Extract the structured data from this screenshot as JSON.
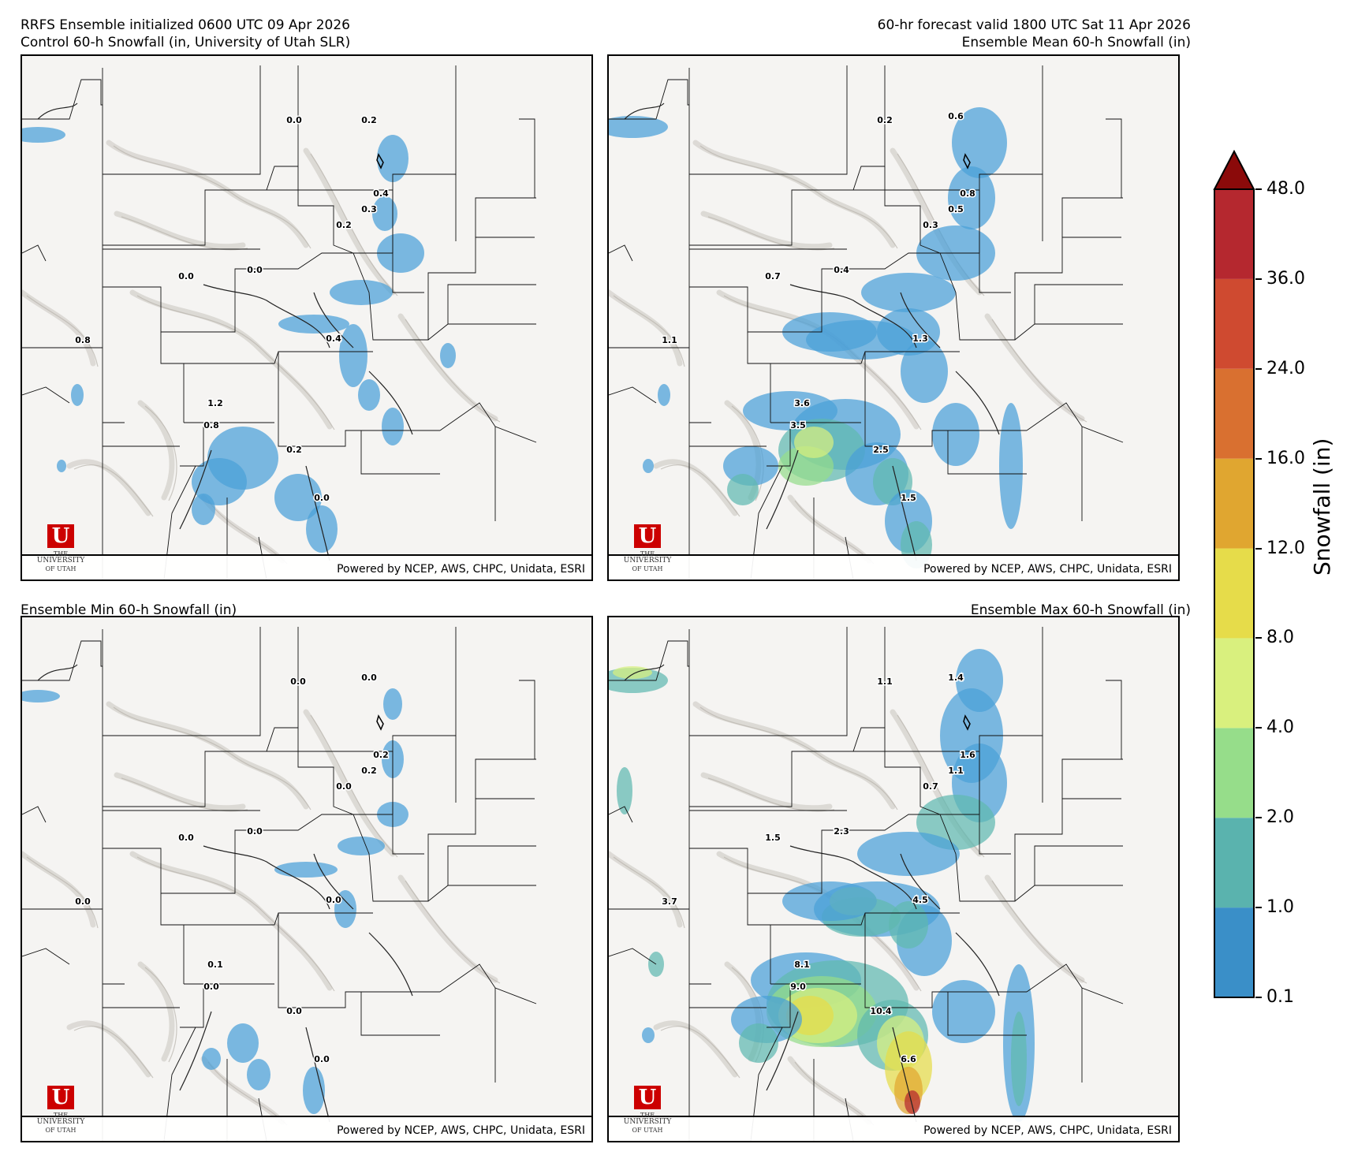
{
  "titles": {
    "top_left_line1": "RRFS Ensemble initialized 0600 UTC 09 Apr 2026",
    "top_left_line2": "Control 60-h Snowfall (in, University of Utah SLR)",
    "top_right_line1": "60-hr forecast valid 1800 UTC Sat 11 Apr 2026",
    "top_right_line2": "Ensemble Mean 60-h Snowfall (in)",
    "bottom_left": "Ensemble Min 60-h Snowfall (in)",
    "bottom_right": "Ensemble Max 60-h Snowfall (in)"
  },
  "credit": "Powered by NCEP, AWS, CHPC, Unidata, ESRI",
  "logo": {
    "line1": "THE",
    "line2": "UNIVERSITY",
    "line3": "OF UTAH",
    "letter": "U"
  },
  "colors": {
    "snow_light": "#4a9fd8",
    "snow_teal": "#5fb8b0",
    "snow_green": "#96dd8a",
    "snow_yellowgreen": "#d8f080",
    "snow_yellow": "#e6dc4a",
    "snow_orange": "#e0a630",
    "snow_red": "#b5282f",
    "logo_red": "#cc0000"
  },
  "colorbar": {
    "label": "Snowfall (in)",
    "ticks": [
      "0.1",
      "1.0",
      "2.0",
      "4.0",
      "8.0",
      "12.0",
      "16.0",
      "24.0",
      "36.0",
      "48.0"
    ],
    "colors": [
      "#3a8fc8",
      "#5ab3ae",
      "#96dd8a",
      "#d9f07e",
      "#e6dc4a",
      "#e0a630",
      "#d97030",
      "#cf4a30",
      "#b5282f"
    ],
    "extend_color": "#8b0a0a"
  },
  "panels": {
    "control": {
      "labels": [
        {
          "text": "0.0"
        },
        {
          "text": "0.2"
        },
        {
          "text": "0.4"
        },
        {
          "text": "0.3"
        },
        {
          "text": "0.2"
        },
        {
          "text": "0.0"
        },
        {
          "text": "0.0"
        },
        {
          "text": "0.8"
        },
        {
          "text": "0.4"
        },
        {
          "text": "1.2"
        },
        {
          "text": "0.8"
        },
        {
          "text": "0.2"
        },
        {
          "text": "0.0"
        }
      ]
    },
    "mean": {
      "labels": [
        {
          "text": "0.2"
        },
        {
          "text": "0.6"
        },
        {
          "text": "0.8"
        },
        {
          "text": "0.5"
        },
        {
          "text": "0.3"
        },
        {
          "text": "0.7"
        },
        {
          "text": "0.4"
        },
        {
          "text": "1.1"
        },
        {
          "text": "1.3"
        },
        {
          "text": "3.6"
        },
        {
          "text": "3.5"
        },
        {
          "text": "2.5"
        },
        {
          "text": "1.5"
        }
      ]
    },
    "min": {
      "labels": [
        {
          "text": "0.0"
        },
        {
          "text": "0.0"
        },
        {
          "text": "0.2"
        },
        {
          "text": "0.2"
        },
        {
          "text": "0.0"
        },
        {
          "text": "0.0"
        },
        {
          "text": "0.0"
        },
        {
          "text": "0.0"
        },
        {
          "text": "0.0"
        },
        {
          "text": "0.1"
        },
        {
          "text": "0.0"
        },
        {
          "text": "0.0"
        },
        {
          "text": "0.0"
        }
      ]
    },
    "max": {
      "labels": [
        {
          "text": "1.1"
        },
        {
          "text": "1.4"
        },
        {
          "text": "1.6"
        },
        {
          "text": "1.1"
        },
        {
          "text": "0.7"
        },
        {
          "text": "1.5"
        },
        {
          "text": "2.3"
        },
        {
          "text": "3.7"
        },
        {
          "text": "4.5"
        },
        {
          "text": "8.1"
        },
        {
          "text": "9.0"
        },
        {
          "text": "10.4"
        },
        {
          "text": "6.6"
        }
      ]
    }
  }
}
